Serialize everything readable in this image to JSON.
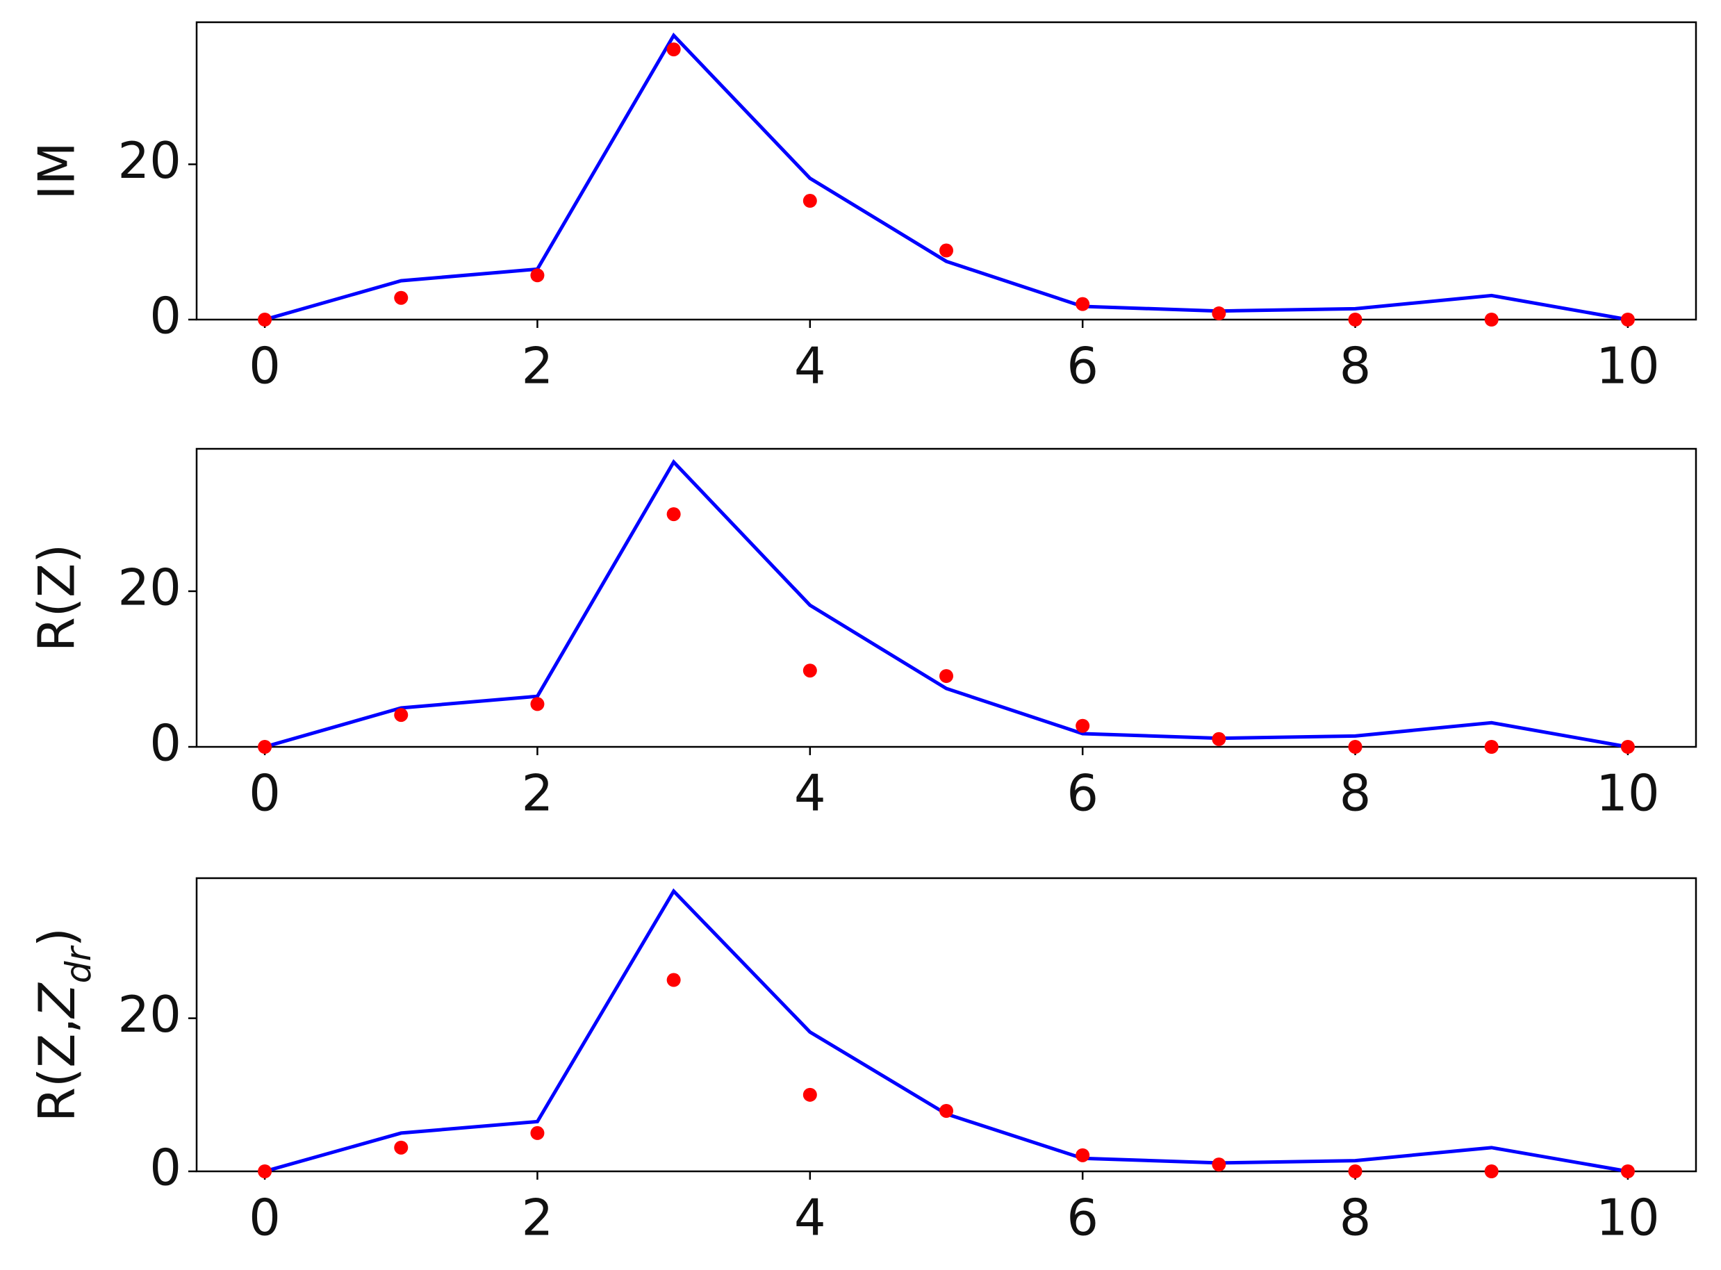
{
  "chart_data": [
    {
      "type": "line",
      "ylabel": "IM",
      "x": [
        0,
        1,
        2,
        3,
        4,
        5,
        6,
        7,
        8,
        9,
        10
      ],
      "xlim": [
        -0.5,
        10.5
      ],
      "xticks": [
        0,
        2,
        4,
        6,
        8,
        10
      ],
      "ylim": [
        0,
        38.3
      ],
      "yticks": [
        0,
        20
      ],
      "series": [
        {
          "mark": "line",
          "color": "#0000ff",
          "values": [
            0,
            5.0,
            6.5,
            36.6,
            18.2,
            7.5,
            1.7,
            1.1,
            1.4,
            3.1,
            0
          ]
        },
        {
          "mark": "dot",
          "color": "#ff0000",
          "values": [
            0,
            2.8,
            5.7,
            34.8,
            15.3,
            8.9,
            2.0,
            0.8,
            0,
            0,
            0
          ]
        }
      ]
    },
    {
      "type": "line",
      "ylabel": "R(Z)",
      "x": [
        0,
        1,
        2,
        3,
        4,
        5,
        6,
        7,
        8,
        9,
        10
      ],
      "xlim": [
        -0.5,
        10.5
      ],
      "xticks": [
        0,
        2,
        4,
        6,
        8,
        10
      ],
      "ylim": [
        0,
        38.3
      ],
      "yticks": [
        0,
        20
      ],
      "series": [
        {
          "mark": "line",
          "color": "#0000ff",
          "values": [
            0,
            5.0,
            6.5,
            36.6,
            18.2,
            7.5,
            1.7,
            1.1,
            1.4,
            3.1,
            0
          ]
        },
        {
          "mark": "dot",
          "color": "#ff0000",
          "values": [
            0,
            4.1,
            5.5,
            29.9,
            9.8,
            9.1,
            2.7,
            1.0,
            0,
            0,
            0
          ]
        }
      ]
    },
    {
      "type": "line",
      "ylabel": [
        {
          "text": "R(Z,"
        },
        {
          "text": "Z",
          "italic": true
        },
        {
          "text": "dr",
          "italic": true,
          "sub": true
        },
        {
          "text": ")"
        }
      ],
      "x": [
        0,
        1,
        2,
        3,
        4,
        5,
        6,
        7,
        8,
        9,
        10
      ],
      "xlim": [
        -0.5,
        10.5
      ],
      "xticks": [
        0,
        2,
        4,
        6,
        8,
        10
      ],
      "ylim": [
        0,
        38.3
      ],
      "yticks": [
        0,
        20
      ],
      "series": [
        {
          "mark": "line",
          "color": "#0000ff",
          "values": [
            0,
            5.0,
            6.5,
            36.6,
            18.2,
            7.5,
            1.7,
            1.1,
            1.4,
            3.1,
            0
          ]
        },
        {
          "mark": "dot",
          "color": "#ff0000",
          "values": [
            0,
            3.1,
            5.0,
            25.0,
            10.0,
            7.9,
            2.1,
            0.9,
            0,
            0,
            0
          ]
        }
      ]
    }
  ]
}
